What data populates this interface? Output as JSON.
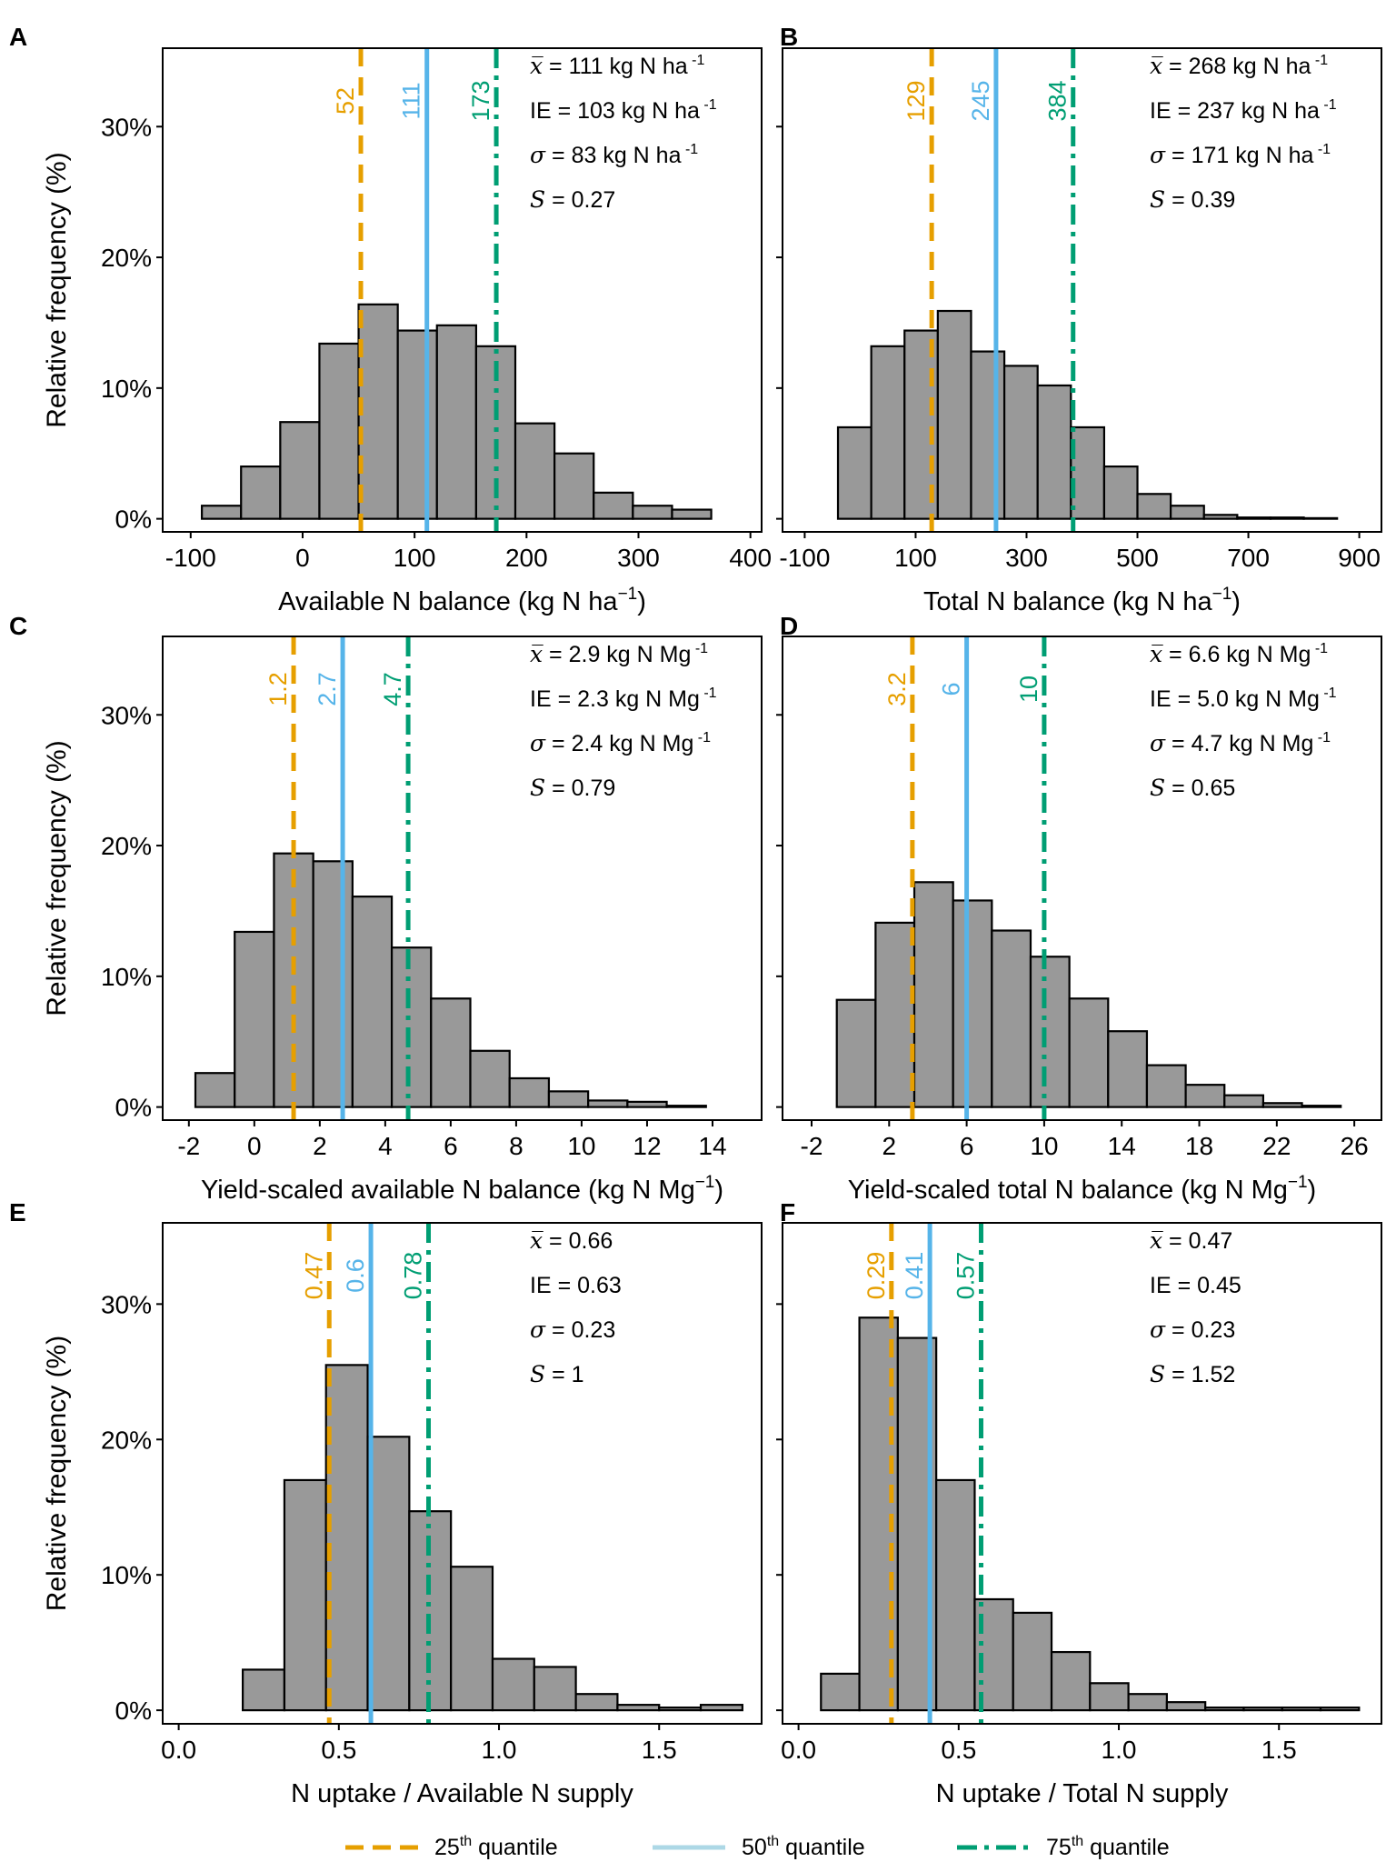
{
  "figure": {
    "legend": {
      "q25": {
        "label": "25",
        "sup": "th",
        "suffix": " quantile",
        "color": "#E69F00"
      },
      "q50": {
        "label": "50",
        "sup": "th",
        "suffix": " quantile",
        "color": "#56B4E9"
      },
      "q75": {
        "label": "75",
        "sup": "th",
        "suffix": " quantile",
        "color": "#009E73"
      }
    },
    "y_axis_label": "Relative frequency (%)",
    "bar_color": "#999999"
  },
  "chart_data": [
    {
      "panel": "A",
      "type": "bar",
      "title": "",
      "xlabel": "Available N balance (kg N ha",
      "xlabel_sup": "−1",
      "xlabel_end": ")",
      "ylabel": "Relative frequency (%)",
      "xlim": [
        -125,
        410
      ],
      "ylim": [
        -1,
        36
      ],
      "x_ticks": [
        -100,
        0,
        100,
        200,
        300,
        400
      ],
      "x_tick_labels": [
        "-100",
        "0",
        "100",
        "200",
        "300",
        "400"
      ],
      "y_ticks": [
        0,
        10,
        20,
        30
      ],
      "y_tick_labels": [
        "0%",
        "10%",
        "20%",
        "30%"
      ],
      "bin_edges": [
        -90,
        -55,
        -20,
        15,
        50,
        85,
        120,
        155,
        190,
        225,
        260,
        295,
        330,
        365
      ],
      "values": [
        1.0,
        4.0,
        7.4,
        13.4,
        16.4,
        14.4,
        14.8,
        13.2,
        7.3,
        5.0,
        2.0,
        1.0,
        0.7
      ],
      "quantiles": [
        {
          "q": 25,
          "value": 52,
          "label": "52"
        },
        {
          "q": 50,
          "value": 111,
          "label": "111"
        },
        {
          "q": 75,
          "value": 173,
          "label": "173"
        }
      ],
      "stats": [
        {
          "sym": "x̅",
          "eq": "= ",
          "val": "111 kg N ha",
          "sup": " -1"
        },
        {
          "sym": "IE",
          "eq": " = ",
          "val": "103 kg N ha",
          "sup": " -1"
        },
        {
          "sym": "σ",
          "eq": "= ",
          "val": "83 kg N ha",
          "sup": " -1"
        },
        {
          "sym": "S",
          "eq": "=  ",
          "val": "0.27",
          "sup": ""
        }
      ]
    },
    {
      "panel": "B",
      "type": "bar",
      "title": "",
      "xlabel": "Total N balance (kg N ha",
      "xlabel_sup": "−1",
      "xlabel_end": ")",
      "ylabel": "Relative frequency (%)",
      "xlim": [
        -140,
        940
      ],
      "ylim": [
        -1,
        36
      ],
      "x_ticks": [
        -100,
        100,
        300,
        500,
        700,
        900
      ],
      "x_tick_labels": [
        "-100",
        "100",
        "300",
        "500",
        "700",
        "900"
      ],
      "y_ticks": [
        0,
        10,
        20,
        30
      ],
      "y_tick_labels": [
        "",
        "",
        "",
        ""
      ],
      "bin_edges": [
        -40,
        20,
        80,
        140,
        200,
        260,
        320,
        380,
        440,
        500,
        560,
        620,
        680,
        740,
        800,
        860
      ],
      "values": [
        7.0,
        13.2,
        14.4,
        15.9,
        12.8,
        11.7,
        10.2,
        7.0,
        4.0,
        1.9,
        1.0,
        0.3,
        0.1,
        0.1,
        0.05
      ],
      "quantiles": [
        {
          "q": 25,
          "value": 129,
          "label": "129"
        },
        {
          "q": 50,
          "value": 245,
          "label": "245"
        },
        {
          "q": 75,
          "value": 384,
          "label": "384"
        }
      ],
      "stats": [
        {
          "sym": "x̅",
          "eq": "= ",
          "val": "268 kg N ha",
          "sup": " -1"
        },
        {
          "sym": "IE",
          "eq": " = ",
          "val": "237 kg N ha",
          "sup": " -1"
        },
        {
          "sym": "σ",
          "eq": "= ",
          "val": "171 kg N ha",
          "sup": " -1"
        },
        {
          "sym": "S",
          "eq": "=  ",
          "val": "0.39",
          "sup": ""
        }
      ]
    },
    {
      "panel": "C",
      "type": "bar",
      "title": "",
      "xlabel": "Yield-scaled available N balance (kg N Mg",
      "xlabel_sup": "−1",
      "xlabel_end": ")",
      "ylabel": "Relative frequency (%)",
      "xlim": [
        -2.8,
        15.5
      ],
      "ylim": [
        -1,
        36
      ],
      "x_ticks": [
        -2,
        0,
        2,
        4,
        6,
        8,
        10,
        12,
        14
      ],
      "x_tick_labels": [
        "-2",
        "0",
        "2",
        "4",
        "6",
        "8",
        "10",
        "12",
        "14"
      ],
      "y_ticks": [
        0,
        10,
        20,
        30
      ],
      "y_tick_labels": [
        "0%",
        "10%",
        "20%",
        "30%"
      ],
      "bin_edges": [
        -1.8,
        -0.6,
        0.6,
        1.8,
        3.0,
        4.2,
        5.4,
        6.6,
        7.8,
        9.0,
        10.2,
        11.4,
        12.6,
        13.8
      ],
      "values": [
        2.6,
        13.4,
        19.4,
        18.8,
        16.1,
        12.2,
        8.3,
        4.3,
        2.2,
        1.2,
        0.5,
        0.4,
        0.1
      ],
      "quantiles": [
        {
          "q": 25,
          "value": 1.2,
          "label": "1.2"
        },
        {
          "q": 50,
          "value": 2.7,
          "label": "2.7"
        },
        {
          "q": 75,
          "value": 4.7,
          "label": "4.7"
        }
      ],
      "stats": [
        {
          "sym": "x̅",
          "eq": "= ",
          "val": "2.9 kg N Mg",
          "sup": " -1"
        },
        {
          "sym": "IE",
          "eq": " = ",
          "val": "2.3 kg N Mg",
          "sup": " -1"
        },
        {
          "sym": "σ",
          "eq": "= ",
          "val": "2.4 kg N Mg",
          "sup": " -1"
        },
        {
          "sym": "S",
          "eq": "=  ",
          "val": "0.79",
          "sup": ""
        }
      ]
    },
    {
      "panel": "D",
      "type": "bar",
      "title": "",
      "xlabel": "Yield-scaled total N balance (kg N Mg",
      "xlabel_sup": "−1",
      "xlabel_end": ")",
      "ylabel": "Relative frequency (%)",
      "xlim": [
        -3.5,
        27.4
      ],
      "ylim": [
        -1,
        36
      ],
      "x_ticks": [
        -2,
        2,
        6,
        10,
        14,
        18,
        22,
        26
      ],
      "x_tick_labels": [
        "-2",
        "2",
        "6",
        "10",
        "14",
        "18",
        "22",
        "26"
      ],
      "y_ticks": [
        0,
        10,
        20,
        30
      ],
      "y_tick_labels": [
        "",
        "",
        "",
        ""
      ],
      "bin_edges": [
        -0.7,
        1.3,
        3.3,
        5.3,
        7.3,
        9.3,
        11.3,
        13.3,
        15.3,
        17.3,
        19.3,
        21.3,
        23.3,
        25.3
      ],
      "values": [
        8.2,
        14.1,
        17.2,
        15.8,
        13.5,
        11.5,
        8.3,
        5.8,
        3.2,
        1.7,
        0.9,
        0.3,
        0.1
      ],
      "quantiles": [
        {
          "q": 25,
          "value": 3.2,
          "label": "3.2"
        },
        {
          "q": 50,
          "value": 6,
          "label": "6"
        },
        {
          "q": 75,
          "value": 10,
          "label": "10"
        }
      ],
      "stats": [
        {
          "sym": "x̅",
          "eq": "= ",
          "val": "6.6 kg N Mg",
          "sup": " -1"
        },
        {
          "sym": "IE",
          "eq": " = ",
          "val": "5.0 kg N Mg",
          "sup": " -1"
        },
        {
          "sym": "σ",
          "eq": "= ",
          "val": "4.7 kg N Mg",
          "sup": " -1"
        },
        {
          "sym": "S",
          "eq": "=  ",
          "val": "0.65",
          "sup": ""
        }
      ]
    },
    {
      "panel": "E",
      "type": "bar",
      "title": "",
      "xlabel": "N uptake / Available N supply",
      "xlabel_sup": "",
      "xlabel_end": "",
      "ylabel": "Relative frequency (%)",
      "xlim": [
        -0.05,
        1.82
      ],
      "ylim": [
        -1,
        36
      ],
      "x_ticks": [
        0.0,
        0.5,
        1.0,
        1.5
      ],
      "x_tick_labels": [
        "0.0",
        "0.5",
        "1.0",
        "1.5"
      ],
      "y_ticks": [
        0,
        10,
        20,
        30
      ],
      "y_tick_labels": [
        "0%",
        "10%",
        "20%",
        "30%"
      ],
      "bin_edges": [
        0.07,
        0.2,
        0.33,
        0.46,
        0.59,
        0.72,
        0.85,
        0.98,
        1.11,
        1.24,
        1.37,
        1.5,
        1.63,
        1.76
      ],
      "values": [
        0.0,
        3.0,
        17.0,
        25.5,
        20.2,
        14.7,
        10.6,
        3.8,
        3.2,
        1.2,
        0.4,
        0.2,
        0.4
      ],
      "quantiles": [
        {
          "q": 25,
          "value": 0.47,
          "label": "0.47"
        },
        {
          "q": 50,
          "value": 0.6,
          "label": "0.6"
        },
        {
          "q": 75,
          "value": 0.78,
          "label": "0.78"
        }
      ],
      "stats": [
        {
          "sym": "x̅",
          "eq": "= ",
          "val": "0.66",
          "sup": ""
        },
        {
          "sym": "IE",
          "eq": " = ",
          "val": "0.63",
          "sup": ""
        },
        {
          "sym": "σ",
          "eq": "= ",
          "val": "0.23",
          "sup": ""
        },
        {
          "sym": "S",
          "eq": "=  ",
          "val": "1",
          "sup": ""
        }
      ]
    },
    {
      "panel": "F",
      "type": "bar",
      "title": "",
      "xlabel": "N uptake / Total N supply",
      "xlabel_sup": "",
      "xlabel_end": "",
      "ylabel": "Relative frequency (%)",
      "xlim": [
        -0.05,
        1.82
      ],
      "ylim": [
        -1,
        36
      ],
      "x_ticks": [
        0.0,
        0.5,
        1.0,
        1.5
      ],
      "x_tick_labels": [
        "0.0",
        "0.5",
        "1.0",
        "1.5"
      ],
      "y_ticks": [
        0,
        10,
        20,
        30
      ],
      "y_tick_labels": [
        "",
        "",
        "",
        ""
      ],
      "bin_edges": [
        0.07,
        0.19,
        0.31,
        0.43,
        0.55,
        0.67,
        0.79,
        0.91,
        1.03,
        1.15,
        1.27,
        1.39,
        1.51,
        1.63,
        1.75
      ],
      "values": [
        2.7,
        29.0,
        27.5,
        17.0,
        8.2,
        7.2,
        4.3,
        2.0,
        1.2,
        0.6,
        0.2,
        0.2,
        0.2,
        0.2
      ],
      "quantiles": [
        {
          "q": 25,
          "value": 0.29,
          "label": "0.29"
        },
        {
          "q": 50,
          "value": 0.41,
          "label": "0.41"
        },
        {
          "q": 75,
          "value": 0.57,
          "label": "0.57"
        }
      ],
      "stats": [
        {
          "sym": "x̅",
          "eq": "= ",
          "val": "0.47",
          "sup": ""
        },
        {
          "sym": "IE",
          "eq": " = ",
          "val": "0.45",
          "sup": ""
        },
        {
          "sym": "σ",
          "eq": "= ",
          "val": "0.23",
          "sup": ""
        },
        {
          "sym": "S",
          "eq": "=  ",
          "val": "1.52",
          "sup": ""
        }
      ]
    }
  ]
}
